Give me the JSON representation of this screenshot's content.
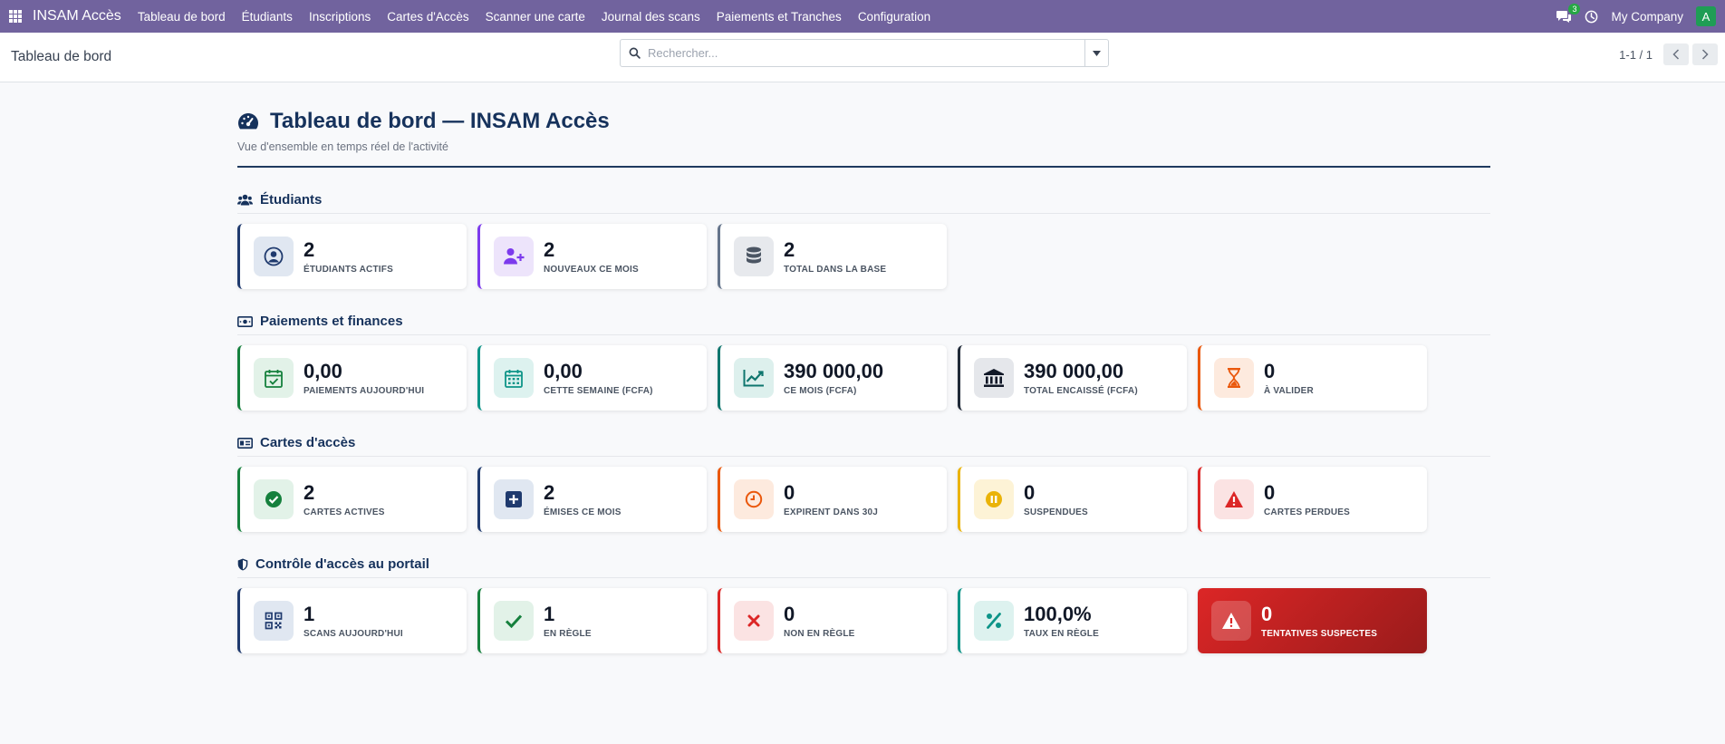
{
  "app": {
    "brand": "INSAM Accès",
    "menu": [
      {
        "label": "Tableau de bord"
      },
      {
        "label": "Étudiants"
      },
      {
        "label": "Inscriptions"
      },
      {
        "label": "Cartes d'Accès"
      },
      {
        "label": "Scanner une carte"
      },
      {
        "label": "Journal des scans"
      },
      {
        "label": "Paiements et Tranches"
      },
      {
        "label": "Configuration"
      }
    ],
    "chat_count": "3",
    "company": "My Company",
    "avatar_letter": "A",
    "nav_color": "#71639e"
  },
  "control": {
    "breadcrumb": "Tableau de bord",
    "search_placeholder": "Rechercher...",
    "pager": "1-1 / 1"
  },
  "dashboard": {
    "title": "Tableau de bord — INSAM Accès",
    "subtitle": "Vue d'ensemble en temps réel de l'activité",
    "sections": [
      {
        "title": "Étudiants",
        "icon": "users-icon",
        "cards": [
          {
            "value": "2",
            "label": "Étudiants actifs",
            "icon": "user-circle-icon",
            "accent": "#1f3a6e"
          },
          {
            "value": "2",
            "label": "Nouveaux ce mois",
            "icon": "user-plus-icon",
            "accent": "#7c3aed"
          },
          {
            "value": "2",
            "label": "Total dans la base",
            "icon": "database-icon",
            "accent": "#64748b"
          }
        ]
      },
      {
        "title": "Paiements et finances",
        "icon": "money-icon",
        "cards": [
          {
            "value": "0,00",
            "label": "Paiements aujourd'hui",
            "icon": "calendar-check-icon",
            "accent": "#15803d"
          },
          {
            "value": "0,00",
            "label": "Cette semaine (FCFA)",
            "icon": "calendar-icon",
            "accent": "#0d9488"
          },
          {
            "value": "390 000,00",
            "label": "Ce mois (FCFA)",
            "icon": "chart-line-icon",
            "accent": "#0f766e"
          },
          {
            "value": "390 000,00",
            "label": "Total encaissé (FCFA)",
            "icon": "bank-icon",
            "accent": "#1f2937"
          },
          {
            "value": "0",
            "label": "À valider",
            "icon": "hourglass-icon",
            "accent": "#ea580c"
          }
        ]
      },
      {
        "title": "Cartes d'accès",
        "icon": "id-card-icon",
        "cards": [
          {
            "value": "2",
            "label": "Cartes actives",
            "icon": "check-circle-icon",
            "accent": "#15803d"
          },
          {
            "value": "2",
            "label": "Émises ce mois",
            "icon": "plus-square-icon",
            "accent": "#1f3a6e"
          },
          {
            "value": "0",
            "label": "Expirent dans 30j",
            "icon": "clock-icon",
            "accent": "#ea580c"
          },
          {
            "value": "0",
            "label": "Suspendues",
            "icon": "pause-icon",
            "accent": "#eab308"
          },
          {
            "value": "0",
            "label": "Cartes perdues",
            "icon": "warning-icon",
            "accent": "#dc2626"
          }
        ]
      },
      {
        "title": "Contrôle d'accès au portail",
        "icon": "shield-icon",
        "cards": [
          {
            "value": "1",
            "label": "Scans aujourd'hui",
            "icon": "qrcode-icon",
            "accent": "#1f3a6e"
          },
          {
            "value": "1",
            "label": "En règle",
            "icon": "check-icon",
            "accent": "#15803d"
          },
          {
            "value": "0",
            "label": "Non en règle",
            "icon": "times-icon",
            "accent": "#dc2626"
          },
          {
            "value": "100,0%",
            "label": "Taux en règle",
            "icon": "percent-icon",
            "accent": "#0d9488"
          },
          {
            "value": "0",
            "label": "Tentatives suspectes",
            "icon": "warning-icon",
            "accent": "#dc2626",
            "style": "danger"
          }
        ]
      }
    ]
  }
}
